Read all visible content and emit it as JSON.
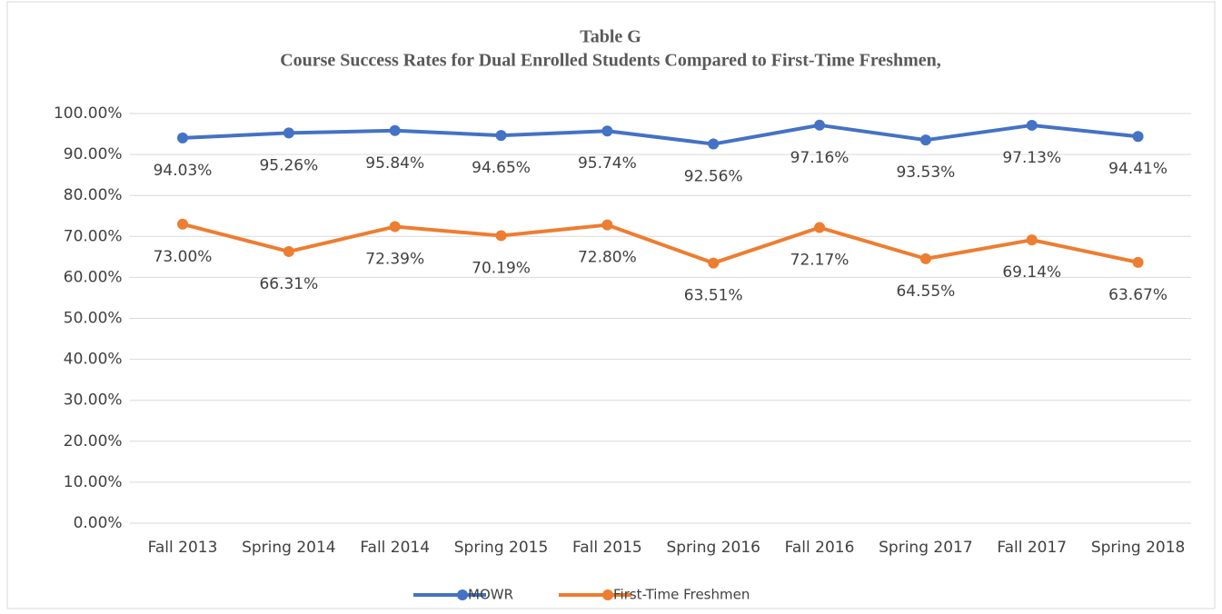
{
  "chart_data": {
    "type": "line",
    "title": "Table G",
    "subtitle": "Course Success Rates for Dual Enrolled Students Compared to First-Time Freshmen,",
    "categories": [
      "Fall 2013",
      "Spring 2014",
      "Fall 2014",
      "Spring 2015",
      "Fall 2015",
      "Spring 2016",
      "Fall 2016",
      "Spring 2017",
      "Fall 2017",
      "Spring 2018"
    ],
    "series": [
      {
        "name": "MOWR",
        "color": "#4472c4",
        "values": [
          94.03,
          95.26,
          95.84,
          94.65,
          95.74,
          92.56,
          97.16,
          93.53,
          97.13,
          94.41
        ],
        "value_labels": [
          "94.03%",
          "95.26%",
          "95.84%",
          "94.65%",
          "95.74%",
          "92.56%",
          "97.16%",
          "93.53%",
          "97.13%",
          "94.41%"
        ]
      },
      {
        "name": "First-Time Freshmen",
        "color": "#ed7d31",
        "values": [
          73.0,
          66.31,
          72.39,
          70.19,
          72.8,
          63.51,
          72.17,
          64.55,
          69.14,
          63.67
        ],
        "value_labels": [
          "73.00%",
          "66.31%",
          "72.39%",
          "70.19%",
          "72.80%",
          "63.51%",
          "72.17%",
          "64.55%",
          "69.14%",
          "63.67%"
        ]
      }
    ],
    "ylim": [
      0,
      100
    ],
    "yticks": [
      {
        "value": 0,
        "label": "0.00%"
      },
      {
        "value": 10,
        "label": "10.00%"
      },
      {
        "value": 20,
        "label": "20.00%"
      },
      {
        "value": 30,
        "label": "30.00%"
      },
      {
        "value": 40,
        "label": "40.00%"
      },
      {
        "value": 50,
        "label": "50.00%"
      },
      {
        "value": 60,
        "label": "60.00%"
      },
      {
        "value": 70,
        "label": "70.00%"
      },
      {
        "value": 80,
        "label": "80.00%"
      },
      {
        "value": 90,
        "label": "90.00%"
      },
      {
        "value": 100,
        "label": "100.00%"
      }
    ],
    "grid": true,
    "legend": "bottom"
  }
}
